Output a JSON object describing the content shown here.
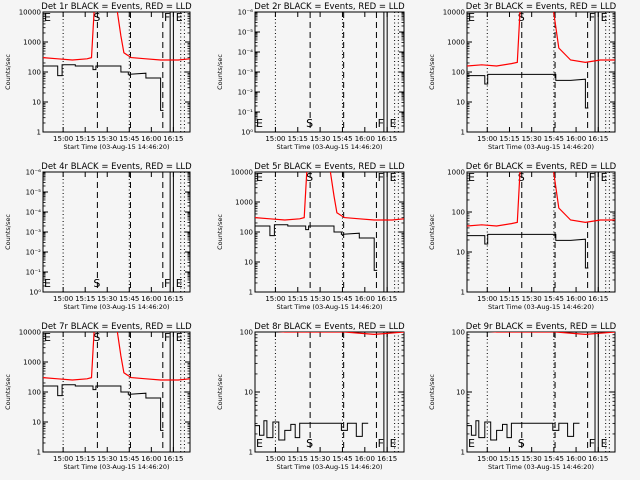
{
  "figure": {
    "background": "#f5f5f5",
    "events_color": "#000000",
    "lld_color": "#ff0000"
  },
  "chart_data": [
    {
      "type": "line",
      "title": "Det 1r BLACK = Events, RED = LLD",
      "xlabel": "Start Time (03-Aug-15 14:46:20)",
      "ylabel": "Counts/sec",
      "ytick_labels": [
        "1",
        "10",
        "100",
        "1000",
        "10000"
      ],
      "xtick_labels": [
        "15:00",
        "15:15",
        "15:30",
        "15:45",
        "16:00",
        "16:15"
      ],
      "markers": [
        "E",
        "S",
        "F",
        "E"
      ],
      "has_data": true
    },
    {
      "type": "line",
      "title": "Det 2r BLACK = Events, RED = LLD",
      "xlabel": "Start Time (03-Aug-15 14:46:20)",
      "ylabel": "Counts/sec",
      "ytick_labels": [
        "10⁰",
        "10⁻¹",
        "10⁻²",
        "10⁻³",
        "10⁻⁴",
        "10⁻⁵",
        "10⁻⁶"
      ],
      "xtick_labels": [
        "15:00",
        "15:15",
        "15:30",
        "15:45",
        "16:00",
        "16:15"
      ],
      "markers": [
        "E",
        "S",
        "F",
        "E"
      ],
      "has_data": false
    },
    {
      "type": "line",
      "title": "Det 3r BLACK = Events, RED = LLD",
      "xlabel": "Start Time (03-Aug-15 14:46:20)",
      "ylabel": "Counts/sec",
      "ytick_labels": [
        "1",
        "10",
        "100",
        "1000",
        "10000"
      ],
      "xtick_labels": [
        "15:00",
        "15:15",
        "15:30",
        "15:45",
        "16:00",
        "16:15"
      ],
      "markers": [
        "E",
        "S",
        "F",
        "E"
      ],
      "has_data": true
    },
    {
      "type": "line",
      "title": "Det 4r BLACK = Events, RED = LLD",
      "xlabel": "Start Time (03-Aug-15 14:46:20)",
      "ylabel": "Counts/sec",
      "ytick_labels": [
        "10⁰",
        "10⁻¹",
        "10⁻²",
        "10⁻³",
        "10⁻⁴",
        "10⁻⁵",
        "10⁻⁶"
      ],
      "xtick_labels": [
        "15:00",
        "15:15",
        "15:30",
        "15:45",
        "16:00",
        "16:15"
      ],
      "markers": [
        "E",
        "S",
        "F",
        "E"
      ],
      "has_data": false
    },
    {
      "type": "line",
      "title": "Det 5r BLACK = Events, RED = LLD",
      "xlabel": "Start Time (03-Aug-15 14:46:20)",
      "ylabel": "Counts/sec",
      "ytick_labels": [
        "1",
        "10",
        "100",
        "1000",
        "10000"
      ],
      "xtick_labels": [
        "15:00",
        "15:15",
        "15:30",
        "15:45",
        "16:00",
        "16:15"
      ],
      "markers": [
        "E",
        "S",
        "F",
        "E"
      ],
      "has_data": true
    },
    {
      "type": "line",
      "title": "Det 6r BLACK = Events, RED = LLD",
      "xlabel": "Start Time (03-Aug-15 14:46:20)",
      "ylabel": "Counts/sec",
      "ytick_labels": [
        "1",
        "10",
        "100",
        "1000"
      ],
      "xtick_labels": [
        "15:00",
        "15:15",
        "15:30",
        "15:45",
        "16:00",
        "16:15"
      ],
      "markers": [
        "E",
        "S",
        "F",
        "E"
      ],
      "has_data": true
    },
    {
      "type": "line",
      "title": "Det 7r BLACK = Events, RED = LLD",
      "xlabel": "Start Time (03-Aug-15 14:46:20)",
      "ylabel": "Counts/sec",
      "ytick_labels": [
        "1",
        "10",
        "100",
        "1000",
        "10000"
      ],
      "xtick_labels": [
        "15:00",
        "15:15",
        "15:30",
        "15:45",
        "16:00",
        "16:15"
      ],
      "markers": [
        "E",
        "S",
        "F",
        "E"
      ],
      "has_data": true
    },
    {
      "type": "line",
      "title": "Det 8r BLACK = Events, RED = LLD",
      "xlabel": "Start Time (03-Aug-15 14:46:20)",
      "ylabel": "Counts/sec",
      "ytick_labels": [
        "1",
        "10",
        "100"
      ],
      "xtick_labels": [
        "15:00",
        "15:15",
        "15:30",
        "15:45",
        "16:00",
        "16:15"
      ],
      "markers": [
        "E",
        "S",
        "F",
        "E"
      ],
      "has_data": true
    },
    {
      "type": "line",
      "title": "Det 9r BLACK = Events, RED = LLD",
      "xlabel": "Start Time (03-Aug-15 14:46:20)",
      "ylabel": "Counts/sec",
      "ytick_labels": [
        "1",
        "10",
        "100"
      ],
      "xtick_labels": [
        "15:00",
        "15:15",
        "15:30",
        "15:45",
        "16:00",
        "16:15"
      ],
      "markers": [
        "E",
        "S",
        "F",
        "E"
      ],
      "has_data": true
    }
  ]
}
